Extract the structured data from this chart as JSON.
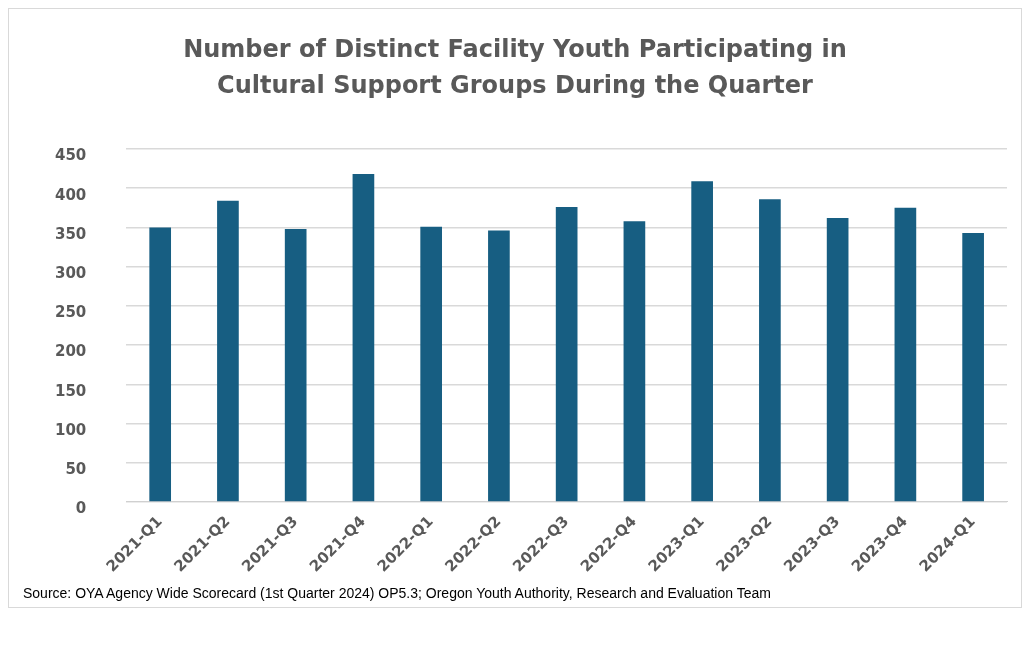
{
  "chart_data": {
    "type": "bar",
    "title": "Number of Distinct Facility Youth Participating in Cultural Support Groups During the Quarter",
    "categories": [
      "2021-Q1",
      "2021-Q2",
      "2021-Q3",
      "2021-Q4",
      "2022-Q1",
      "2022-Q2",
      "2022-Q3",
      "2022-Q4",
      "2023-Q1",
      "2023-Q2",
      "2023-Q3",
      "2023-Q4",
      "2024-Q1"
    ],
    "values": [
      350,
      384,
      348,
      418,
      351,
      346,
      376,
      358,
      409,
      386,
      362,
      375,
      343
    ],
    "color": "#175e82",
    "ylim": [
      0,
      450
    ],
    "yticks": [
      0,
      50,
      100,
      150,
      200,
      250,
      300,
      350,
      400,
      450
    ],
    "grid": "y",
    "legend": false,
    "annotations": [
      "Source: OYA Agency Wide Scorecard (1st Quarter 2024) OP5.3; Oregon Youth Authority, Research and Evaluation Team"
    ]
  }
}
